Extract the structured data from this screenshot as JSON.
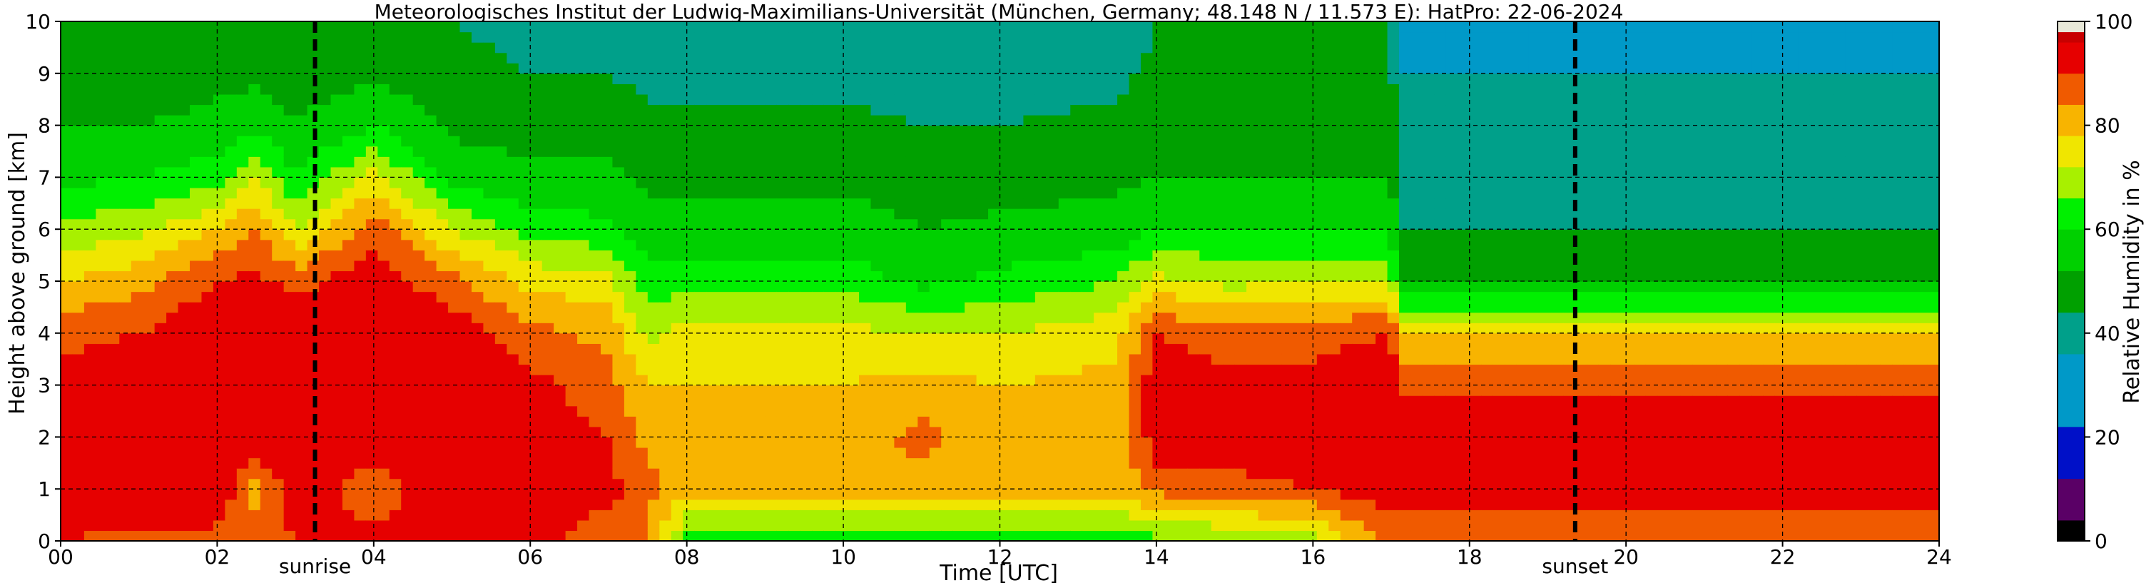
{
  "chart_data": {
    "type": "heatmap",
    "title": "Meteorologisches Institut der Ludwig-Maximilians-Universität (München, Germany; 48.148 N / 11.573 E):    HatPro: 22-06-2024",
    "xlabel": "Time [UTC]",
    "ylabel": "Height above ground [km]",
    "colorbar_label": "Relative Humidity in %",
    "xlim": [
      0,
      24
    ],
    "ylim": [
      0,
      10
    ],
    "x_ticks": [
      "00",
      "02",
      "04",
      "06",
      "08",
      "10",
      "12",
      "14",
      "16",
      "18",
      "20",
      "22",
      "24"
    ],
    "y_ticks": [
      "0",
      "1",
      "2",
      "3",
      "4",
      "5",
      "6",
      "7",
      "8",
      "9",
      "10"
    ],
    "colorbar_ticks": [
      "0",
      "20",
      "40",
      "60",
      "80",
      "100"
    ],
    "colorbar_range": [
      0,
      100
    ],
    "grid": true,
    "annotations": [
      {
        "label": "sunrise",
        "x": 3.25
      },
      {
        "label": "sunset",
        "x": 19.35
      }
    ],
    "colormap": [
      {
        "max": 4,
        "color": "#000000"
      },
      {
        "max": 12,
        "color": "#5a0066"
      },
      {
        "max": 22,
        "color": "#0010c8"
      },
      {
        "max": 36,
        "color": "#0099c8"
      },
      {
        "max": 44,
        "color": "#00a08a"
      },
      {
        "max": 52,
        "color": "#00a000"
      },
      {
        "max": 60,
        "color": "#00d000"
      },
      {
        "max": 66,
        "color": "#00f000"
      },
      {
        "max": 72,
        "color": "#a8f000"
      },
      {
        "max": 78,
        "color": "#f0e600"
      },
      {
        "max": 84,
        "color": "#f8b400"
      },
      {
        "max": 90,
        "color": "#f05a00"
      },
      {
        "max": 96,
        "color": "#e60000"
      },
      {
        "max": 98,
        "color": "#c80000"
      },
      {
        "max": 100,
        "color": "#e8e8d8"
      }
    ],
    "profiles": [
      {
        "t": 0.0,
        "rh": [
          90,
          96,
          94,
          92,
          88,
          78,
          68,
          58,
          52,
          48,
          46
        ]
      },
      {
        "t": 1.0,
        "rh": [
          88,
          95,
          96,
          95,
          90,
          82,
          70,
          60,
          52,
          48,
          46
        ]
      },
      {
        "t": 2.0,
        "rh": [
          88,
          95,
          96,
          96,
          96,
          90,
          78,
          64,
          54,
          50,
          48
        ]
      },
      {
        "t": 2.5,
        "rh": [
          86,
          82,
          95,
          96,
          96,
          92,
          84,
          72,
          58,
          50,
          48
        ]
      },
      {
        "t": 3.0,
        "rh": [
          90,
          95,
          96,
          96,
          95,
          88,
          72,
          60,
          52,
          48,
          46
        ]
      },
      {
        "t": 4.0,
        "rh": [
          92,
          86,
          95,
          96,
          96,
          94,
          88,
          74,
          60,
          50,
          48
        ]
      },
      {
        "t": 5.0,
        "rh": [
          92,
          95,
          96,
          96,
          94,
          86,
          72,
          58,
          50,
          46,
          44
        ]
      },
      {
        "t": 6.0,
        "rh": [
          92,
          95,
          95,
          92,
          86,
          76,
          64,
          54,
          48,
          44,
          42
        ]
      },
      {
        "t": 7.0,
        "rh": [
          86,
          92,
          90,
          86,
          82,
          74,
          62,
          54,
          48,
          44,
          42
        ]
      },
      {
        "t": 7.5,
        "rh": [
          84,
          86,
          82,
          78,
          70,
          62,
          56,
          50,
          46,
          42,
          40
        ]
      },
      {
        "t": 8.0,
        "rh": [
          64,
          80,
          80,
          78,
          74,
          64,
          56,
          50,
          46,
          42,
          40
        ]
      },
      {
        "t": 10.0,
        "rh": [
          62,
          80,
          80,
          78,
          74,
          64,
          56,
          50,
          46,
          42,
          40
        ]
      },
      {
        "t": 11.0,
        "rh": [
          62,
          82,
          86,
          80,
          72,
          58,
          52,
          48,
          44,
          40,
          40
        ]
      },
      {
        "t": 12.0,
        "rh": [
          62,
          80,
          80,
          78,
          72,
          62,
          54,
          48,
          44,
          40,
          40
        ]
      },
      {
        "t": 13.5,
        "rh": [
          60,
          80,
          80,
          80,
          76,
          66,
          56,
          50,
          46,
          42,
          40
        ]
      },
      {
        "t": 14.0,
        "rh": [
          64,
          86,
          94,
          94,
          90,
          74,
          60,
          52,
          48,
          46,
          44
        ]
      },
      {
        "t": 15.0,
        "rh": [
          66,
          88,
          94,
          92,
          86,
          70,
          60,
          52,
          48,
          46,
          44
        ]
      },
      {
        "t": 16.0,
        "rh": [
          70,
          90,
          94,
          92,
          88,
          72,
          60,
          52,
          48,
          46,
          44
        ]
      },
      {
        "t": 17.0,
        "rh": [
          86,
          94,
          95,
          94,
          90,
          72,
          60,
          52,
          48,
          46,
          44
        ]
      },
      {
        "t": 17.1,
        "rh": [
          84,
          95,
          95,
          88,
          80,
          52,
          44,
          40,
          38,
          36,
          36
        ]
      },
      {
        "t": 24.0,
        "rh": [
          84,
          95,
          95,
          88,
          80,
          52,
          44,
          40,
          38,
          36,
          36
        ]
      }
    ]
  }
}
